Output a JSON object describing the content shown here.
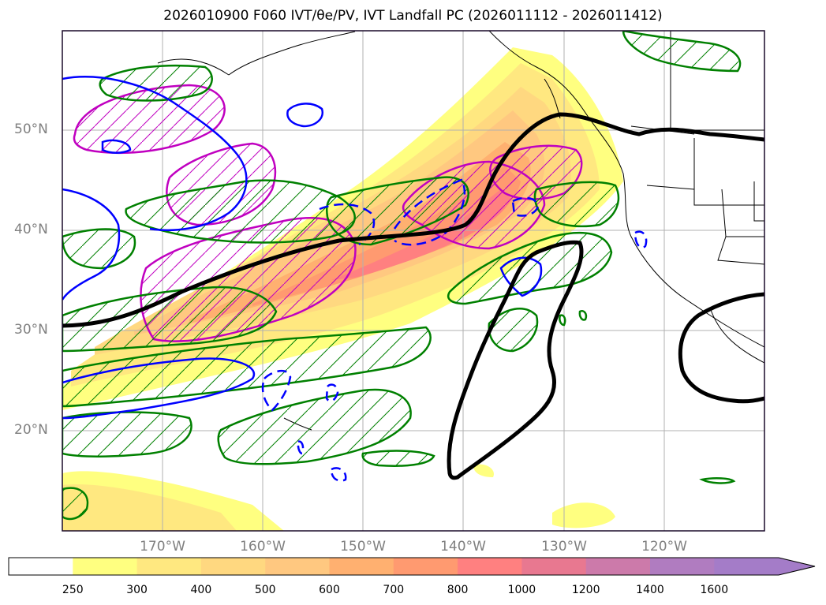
{
  "title": "2026010900 F060 IVT/θe/PV, IVT Landfall PC (2026011112 - 2026011412)",
  "map": {
    "lat_labels": [
      "50°N",
      "40°N",
      "30°N",
      "20°N"
    ],
    "lon_labels": [
      "170°W",
      "160°W",
      "150°W",
      "140°W",
      "130°W",
      "120°W"
    ],
    "colors": {
      "frame": "#1a0a2a",
      "grid": "#b0b0b0",
      "coast": "#000000",
      "black_contour": "#000000",
      "green_contour": "#008000",
      "blue_contour": "#0000ff",
      "magenta_contour": "#c000c0"
    },
    "layers": [
      "IVT shading",
      "θe contours",
      "PV contours",
      "landfall PC contour",
      "coastlines"
    ]
  },
  "colorbar": {
    "ticks": [
      "250",
      "300",
      "400",
      "500",
      "600",
      "700",
      "800",
      "1000",
      "1200",
      "1400",
      "1600"
    ],
    "colors": [
      "#ffffff",
      "#ffff80",
      "#ffe880",
      "#ffd880",
      "#ffc880",
      "#ffb070",
      "#ff9a70",
      "#ff8080",
      "#e87890",
      "#cc7aaa",
      "#b07cc0",
      "#a47cc8"
    ],
    "extend": "max"
  }
}
